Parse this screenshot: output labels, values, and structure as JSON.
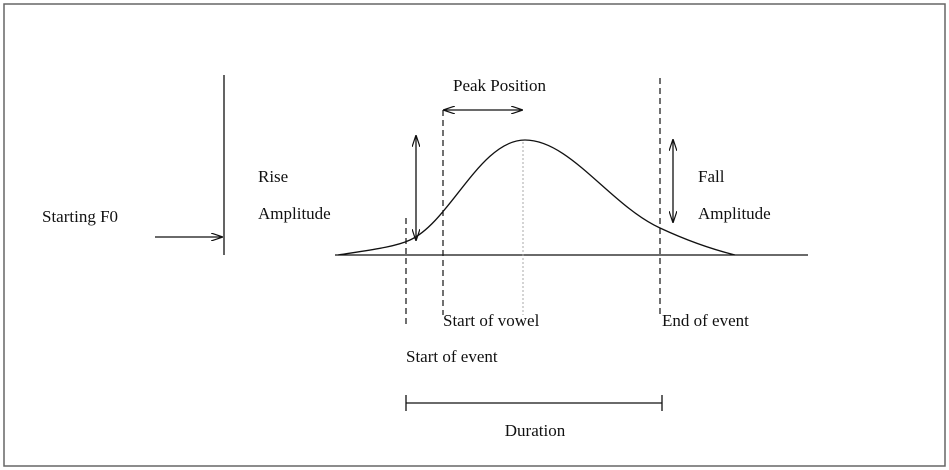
{
  "labels": {
    "peak_position": "Peak Position",
    "rise_amplitude": [
      "Rise",
      "Amplitude"
    ],
    "fall_amplitude": [
      "Fall",
      "Amplitude"
    ],
    "starting_f0": "Starting F0",
    "start_of_vowel": "Start of vowel",
    "start_of_event": "Start of event",
    "end_of_event": "End of event",
    "duration": "Duration"
  }
}
